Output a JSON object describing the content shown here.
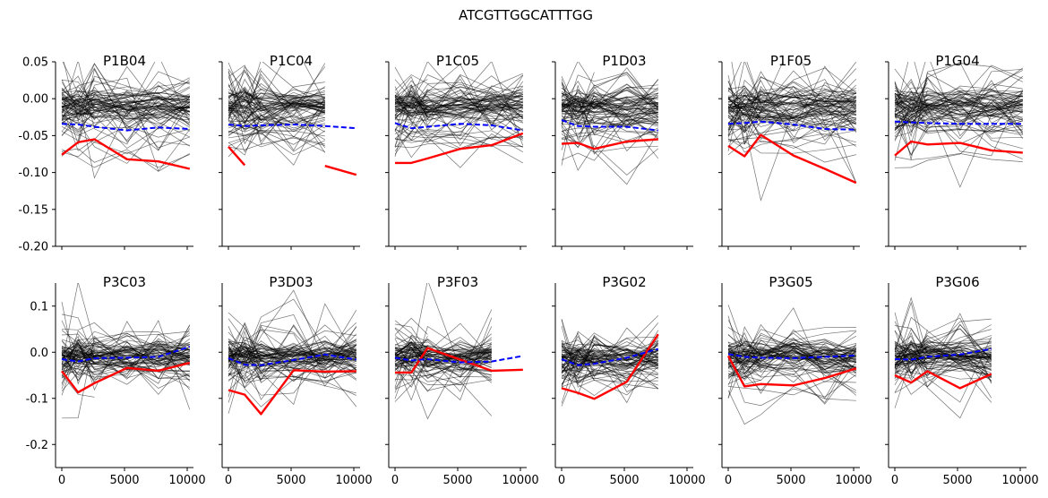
{
  "figure": {
    "title": "ATCGTTGGCATTTGG"
  },
  "colors": {
    "background_lines": "#000000",
    "highlight": "#ff0000",
    "mean": "#0000ff"
  },
  "chart_data": [
    {
      "type": "line",
      "row": 0,
      "title": "P1B04",
      "xlim": [
        -500,
        10500
      ],
      "ylim": [
        -0.2,
        0.05
      ],
      "xticks": [
        0,
        5000,
        10000
      ],
      "yticks": [
        -0.2,
        -0.15,
        -0.1,
        -0.05,
        0.0,
        0.05
      ],
      "background_series_count": 80,
      "series": [
        {
          "role": "highlight",
          "x": [
            0,
            1300,
            2600,
            5200,
            7700,
            10200
          ],
          "y": [
            -0.076,
            -0.059,
            -0.055,
            -0.082,
            -0.085,
            -0.095
          ]
        },
        {
          "role": "mean",
          "x": [
            0,
            1300,
            2600,
            5200,
            7700,
            10200
          ],
          "y": [
            -0.034,
            -0.035,
            -0.038,
            -0.043,
            -0.039,
            -0.041
          ]
        }
      ]
    },
    {
      "type": "line",
      "row": 0,
      "title": "P1C04",
      "xlim": [
        -500,
        10500
      ],
      "ylim": [
        -0.2,
        0.05
      ],
      "xticks": [
        0,
        5000,
        10000
      ],
      "yticks": [
        -0.2,
        -0.15,
        -0.1,
        -0.05,
        0.0,
        0.05
      ],
      "background_series_count": 80,
      "series": [
        {
          "role": "highlight",
          "x": [
            0,
            1300,
            5200,
            7700,
            10200
          ],
          "y": [
            -0.065,
            -0.09,
            null,
            -0.091,
            -0.103
          ]
        },
        {
          "role": "mean",
          "x": [
            0,
            1300,
            2600,
            5200,
            7700,
            10200
          ],
          "y": [
            -0.035,
            -0.037,
            -0.036,
            -0.035,
            -0.037,
            -0.04
          ]
        }
      ]
    },
    {
      "type": "line",
      "row": 0,
      "title": "P1C05",
      "xlim": [
        -500,
        10500
      ],
      "ylim": [
        -0.2,
        0.05
      ],
      "xticks": [
        0,
        5000,
        10000
      ],
      "yticks": [
        -0.2,
        -0.15,
        -0.1,
        -0.05,
        0.0,
        0.05
      ],
      "background_series_count": 80,
      "series": [
        {
          "role": "highlight",
          "x": [
            0,
            1300,
            2600,
            5200,
            7700,
            10200
          ],
          "y": [
            -0.087,
            -0.087,
            -0.081,
            -0.068,
            -0.063,
            -0.047
          ]
        },
        {
          "role": "mean",
          "x": [
            0,
            1300,
            2600,
            5200,
            7700,
            10200
          ],
          "y": [
            -0.033,
            -0.04,
            -0.038,
            -0.034,
            -0.036,
            -0.043
          ]
        }
      ]
    },
    {
      "type": "line",
      "row": 0,
      "title": "P1D03",
      "xlim": [
        -500,
        10500
      ],
      "ylim": [
        -0.2,
        0.05
      ],
      "xticks": [
        0,
        5000,
        10000
      ],
      "yticks": [
        -0.2,
        -0.15,
        -0.1,
        -0.05,
        0.0,
        0.05
      ],
      "background_series_count": 80,
      "series": [
        {
          "role": "highlight",
          "x": [
            0,
            1300,
            2600,
            5200,
            7700
          ],
          "y": [
            -0.061,
            -0.06,
            -0.068,
            -0.058,
            -0.055
          ]
        },
        {
          "role": "mean",
          "x": [
            0,
            1300,
            2600,
            5200,
            7700
          ],
          "y": [
            -0.029,
            -0.037,
            -0.038,
            -0.038,
            -0.043
          ]
        }
      ]
    },
    {
      "type": "line",
      "row": 0,
      "title": "P1F05",
      "xlim": [
        -500,
        10500
      ],
      "ylim": [
        -0.2,
        0.05
      ],
      "xticks": [
        0,
        5000,
        10000
      ],
      "yticks": [
        -0.2,
        -0.15,
        -0.1,
        -0.05,
        0.0,
        0.05
      ],
      "background_series_count": 80,
      "series": [
        {
          "role": "highlight",
          "x": [
            0,
            1300,
            2600,
            5200,
            7700,
            10200
          ],
          "y": [
            -0.064,
            -0.078,
            -0.049,
            -0.077,
            -0.095,
            -0.114
          ]
        },
        {
          "role": "mean",
          "x": [
            0,
            1300,
            2600,
            5200,
            7700,
            10200
          ],
          "y": [
            -0.034,
            -0.033,
            -0.031,
            -0.035,
            -0.041,
            -0.042
          ]
        }
      ]
    },
    {
      "type": "line",
      "row": 0,
      "title": "P1G04",
      "xlim": [
        -500,
        10500
      ],
      "ylim": [
        -0.2,
        0.05
      ],
      "xticks": [
        0,
        5000,
        10000
      ],
      "yticks": [
        -0.2,
        -0.15,
        -0.1,
        -0.05,
        0.0,
        0.05
      ],
      "background_series_count": 80,
      "series": [
        {
          "role": "highlight",
          "x": [
            0,
            1300,
            2600,
            5200,
            7700,
            10200
          ],
          "y": [
            -0.077,
            -0.058,
            -0.062,
            -0.06,
            -0.07,
            -0.073
          ]
        },
        {
          "role": "mean",
          "x": [
            0,
            1300,
            2600,
            5200,
            7700,
            10200
          ],
          "y": [
            -0.031,
            -0.032,
            -0.033,
            -0.034,
            -0.034,
            -0.034
          ]
        }
      ]
    },
    {
      "type": "line",
      "row": 1,
      "title": "P3C03",
      "xlim": [
        -500,
        10500
      ],
      "ylim": [
        -0.25,
        0.15
      ],
      "xticks": [
        0,
        5000,
        10000
      ],
      "yticks": [
        -0.2,
        -0.1,
        0.0,
        0.1
      ],
      "background_series_count": 80,
      "series": [
        {
          "role": "highlight",
          "x": [
            0,
            1300,
            2600,
            5200,
            7700,
            10200
          ],
          "y": [
            -0.041,
            -0.087,
            -0.067,
            -0.034,
            -0.04,
            -0.023
          ]
        },
        {
          "role": "mean",
          "x": [
            0,
            1300,
            2600,
            5200,
            7700,
            10200
          ],
          "y": [
            -0.015,
            -0.02,
            -0.013,
            -0.012,
            -0.01,
            0.012
          ]
        }
      ]
    },
    {
      "type": "line",
      "row": 1,
      "title": "P3D03",
      "xlim": [
        -500,
        10500
      ],
      "ylim": [
        -0.25,
        0.15
      ],
      "xticks": [
        0,
        5000,
        10000
      ],
      "yticks": [
        -0.2,
        -0.1,
        0.0,
        0.1
      ],
      "background_series_count": 80,
      "series": [
        {
          "role": "highlight",
          "x": [
            0,
            1300,
            2600,
            5200,
            7700,
            10200
          ],
          "y": [
            -0.082,
            -0.092,
            -0.134,
            -0.039,
            -0.042,
            -0.041
          ]
        },
        {
          "role": "mean",
          "x": [
            0,
            1300,
            2600,
            5200,
            7700,
            10200
          ],
          "y": [
            -0.013,
            -0.027,
            -0.028,
            -0.017,
            -0.005,
            -0.016
          ]
        }
      ]
    },
    {
      "type": "line",
      "row": 1,
      "title": "P3F03",
      "xlim": [
        -500,
        10500
      ],
      "ylim": [
        -0.25,
        0.15
      ],
      "xticks": [
        0,
        5000,
        10000
      ],
      "yticks": [
        -0.2,
        -0.1,
        0.0,
        0.1
      ],
      "background_series_count": 80,
      "series": [
        {
          "role": "highlight",
          "x": [
            0,
            1300,
            2600,
            7700,
            10200
          ],
          "y": [
            -0.044,
            -0.044,
            0.009,
            -0.04,
            -0.038
          ]
        },
        {
          "role": "mean",
          "x": [
            0,
            1300,
            2600,
            5200,
            7700,
            10200
          ],
          "y": [
            -0.012,
            -0.018,
            -0.015,
            -0.022,
            -0.02,
            -0.008
          ]
        }
      ]
    },
    {
      "type": "line",
      "row": 1,
      "title": "P3G02",
      "xlim": [
        -500,
        10500
      ],
      "ylim": [
        -0.25,
        0.15
      ],
      "xticks": [
        0,
        5000,
        10000
      ],
      "yticks": [
        -0.2,
        -0.1,
        0.0,
        0.1
      ],
      "background_series_count": 80,
      "series": [
        {
          "role": "highlight",
          "x": [
            0,
            1300,
            2600,
            5200,
            7700
          ],
          "y": [
            -0.078,
            -0.088,
            -0.101,
            -0.064,
            0.039
          ]
        },
        {
          "role": "mean",
          "x": [
            0,
            1300,
            2600,
            5200,
            7700
          ],
          "y": [
            -0.015,
            -0.028,
            -0.025,
            -0.012,
            0.007
          ]
        }
      ]
    },
    {
      "type": "line",
      "row": 1,
      "title": "P3G05",
      "xlim": [
        -500,
        10500
      ],
      "ylim": [
        -0.25,
        0.15
      ],
      "xticks": [
        0,
        5000,
        10000
      ],
      "yticks": [
        -0.2,
        -0.1,
        0.0,
        0.1
      ],
      "background_series_count": 80,
      "series": [
        {
          "role": "highlight",
          "x": [
            0,
            1300,
            2600,
            5200,
            7700,
            10200
          ],
          "y": [
            -0.008,
            -0.074,
            -0.069,
            -0.072,
            -0.056,
            -0.035
          ]
        },
        {
          "role": "mean",
          "x": [
            0,
            1300,
            2600,
            5200,
            7700,
            10200
          ],
          "y": [
            -0.004,
            -0.01,
            -0.012,
            -0.013,
            -0.01,
            -0.007
          ]
        }
      ]
    },
    {
      "type": "line",
      "row": 1,
      "title": "P3G06",
      "xlim": [
        -500,
        10500
      ],
      "ylim": [
        -0.25,
        0.15
      ],
      "xticks": [
        0,
        5000,
        10000
      ],
      "yticks": [
        -0.2,
        -0.1,
        0.0,
        0.1
      ],
      "background_series_count": 80,
      "series": [
        {
          "role": "highlight",
          "x": [
            0,
            1300,
            2600,
            5200,
            7700
          ],
          "y": [
            -0.05,
            -0.066,
            -0.041,
            -0.078,
            -0.047
          ]
        },
        {
          "role": "mean",
          "x": [
            0,
            1300,
            2600,
            5200,
            7700
          ],
          "y": [
            -0.015,
            -0.016,
            -0.01,
            -0.005,
            0.007
          ]
        }
      ]
    }
  ]
}
